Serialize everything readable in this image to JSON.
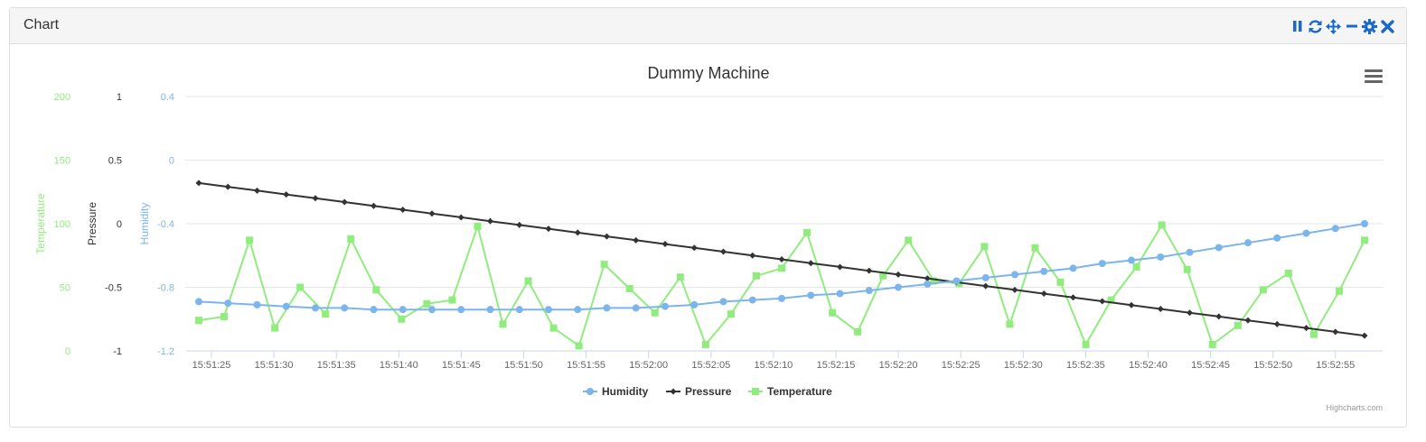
{
  "panel": {
    "title": "Chart",
    "tools": [
      {
        "name": "pause-icon",
        "color": "#1b6ac9"
      },
      {
        "name": "refresh-icon",
        "color": "#1b6ac9"
      },
      {
        "name": "move-icon",
        "color": "#1b6ac9"
      },
      {
        "name": "minimize-icon",
        "color": "#1b6ac9"
      },
      {
        "name": "gear-icon",
        "color": "#1b6ac9"
      },
      {
        "name": "close-icon",
        "color": "#1b6ac9"
      }
    ]
  },
  "chart_data": {
    "type": "line",
    "title": "Dummy Machine",
    "credit": "Highcharts.com",
    "x_ticks": [
      "15:51:25",
      "15:51:30",
      "15:51:35",
      "15:51:40",
      "15:51:45",
      "15:51:50",
      "15:51:55",
      "15:52:00",
      "15:52:05",
      "15:52:10",
      "15:52:15",
      "15:52:20",
      "15:52:25",
      "15:52:30",
      "15:52:35",
      "15:52:40",
      "15:52:45",
      "15:52:50",
      "15:52:55"
    ],
    "x_start": "15:51:24",
    "x_step_seconds": 2,
    "axes": [
      {
        "id": "temperature",
        "title": "Temperature",
        "color": "#90ed7d",
        "ticks": [
          "200",
          "150",
          "100",
          "50",
          "0"
        ],
        "min": 0,
        "max": 200
      },
      {
        "id": "pressure",
        "title": "Pressure",
        "color": "#333333",
        "ticks": [
          "1",
          "0.5",
          "0",
          "-0.5",
          "-1"
        ],
        "min": -1,
        "max": 1
      },
      {
        "id": "humidity",
        "title": "Humidity",
        "color": "#7cb5ec",
        "ticks": [
          "0.4",
          "0",
          "-0.4",
          "-0.8",
          "-1.2"
        ],
        "min": -1.2,
        "max": 0.4
      }
    ],
    "series": [
      {
        "name": "Humidity",
        "axis": "humidity",
        "color": "#7cb5ec",
        "marker": "circle",
        "values": [
          -0.89,
          -0.9,
          -0.91,
          -0.92,
          -0.93,
          -0.93,
          -0.94,
          -0.94,
          -0.94,
          -0.94,
          -0.94,
          -0.94,
          -0.94,
          -0.94,
          -0.93,
          -0.93,
          -0.92,
          -0.91,
          -0.89,
          -0.88,
          -0.87,
          -0.85,
          -0.84,
          -0.82,
          -0.8,
          -0.78,
          -0.76,
          -0.74,
          -0.72,
          -0.7,
          -0.68,
          -0.65,
          -0.63,
          -0.61,
          -0.58,
          -0.55,
          -0.52,
          -0.49,
          -0.46,
          -0.43,
          -0.4
        ]
      },
      {
        "name": "Pressure",
        "axis": "pressure",
        "color": "#333333",
        "marker": "diamond",
        "values": [
          0.32,
          0.29,
          0.26,
          0.23,
          0.2,
          0.17,
          0.14,
          0.11,
          0.08,
          0.05,
          0.02,
          -0.01,
          -0.04,
          -0.07,
          -0.1,
          -0.13,
          -0.16,
          -0.19,
          -0.22,
          -0.25,
          -0.28,
          -0.31,
          -0.34,
          -0.37,
          -0.4,
          -0.43,
          -0.46,
          -0.49,
          -0.52,
          -0.55,
          -0.58,
          -0.61,
          -0.64,
          -0.67,
          -0.7,
          -0.73,
          -0.76,
          -0.79,
          -0.82,
          -0.85,
          -0.88
        ]
      },
      {
        "name": "Temperature",
        "axis": "temperature",
        "color": "#90ed7d",
        "marker": "square",
        "values": [
          24,
          27,
          87,
          18,
          50,
          29,
          88,
          48,
          25,
          37,
          40,
          98,
          21,
          55,
          18,
          4,
          68,
          49,
          30,
          58,
          5,
          29,
          59,
          65,
          93,
          30,
          15,
          59,
          87,
          55,
          53,
          82,
          21,
          81,
          54,
          5,
          40,
          66,
          99,
          64,
          5,
          20,
          48,
          61,
          13,
          47,
          87
        ]
      }
    ],
    "legend": [
      "Humidity",
      "Pressure",
      "Temperature"
    ],
    "legend_position": "bottom-center",
    "grid": true
  }
}
